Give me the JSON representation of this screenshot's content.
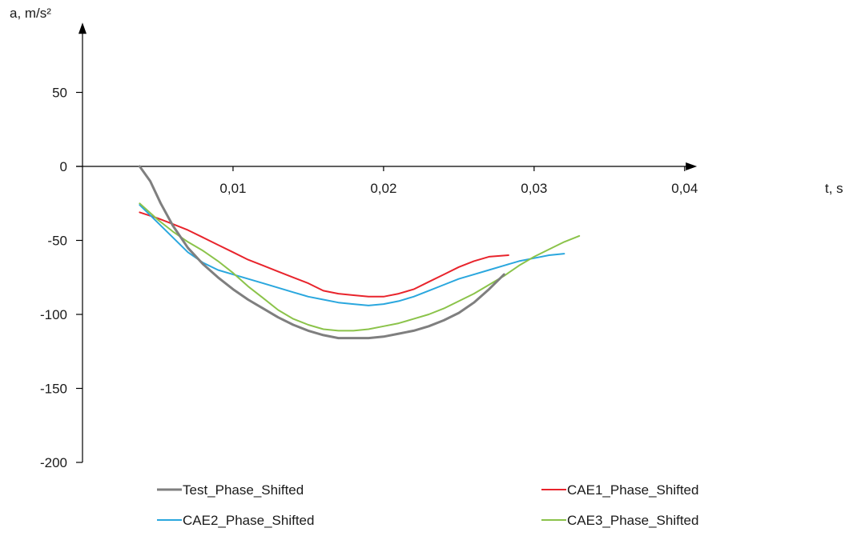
{
  "chart_data": {
    "type": "line",
    "title": "",
    "xlabel": "t, s",
    "ylabel": "a, m/s²",
    "xlim": [
      0,
      0.0405
    ],
    "ylim": [
      -200,
      95
    ],
    "x_ticks": [
      0.01,
      0.02,
      0.03,
      0.04
    ],
    "x_tick_labels": [
      "0,01",
      "0,02",
      "0,03",
      "0,04"
    ],
    "y_ticks": [
      50,
      0,
      -50,
      -100,
      -150,
      -200
    ],
    "y_tick_labels": [
      "50",
      "0",
      "-50",
      "-100",
      "-150",
      "-200"
    ],
    "grid": false,
    "legend_position": "bottom",
    "series": [
      {
        "name": "Test_Phase_Shifted",
        "color": "#7f7f7f",
        "width": 3,
        "x": [
          0.0038,
          0.0045,
          0.0052,
          0.006,
          0.007,
          0.008,
          0.009,
          0.01,
          0.011,
          0.012,
          0.013,
          0.014,
          0.015,
          0.016,
          0.017,
          0.018,
          0.019,
          0.02,
          0.021,
          0.022,
          0.023,
          0.024,
          0.025,
          0.026,
          0.027,
          0.028
        ],
        "y": [
          0,
          -10,
          -25,
          -40,
          -55,
          -66,
          -75,
          -83,
          -90,
          -96,
          -102,
          -107,
          -111,
          -114,
          -116,
          -116,
          -116,
          -115,
          -113,
          -111,
          -108,
          -104,
          -99,
          -92,
          -83,
          -73
        ]
      },
      {
        "name": "CAE1_Phase_Shifted",
        "color": "#e8242c",
        "width": 2,
        "x": [
          0.0038,
          0.005,
          0.006,
          0.007,
          0.008,
          0.009,
          0.01,
          0.011,
          0.012,
          0.013,
          0.014,
          0.015,
          0.016,
          0.017,
          0.018,
          0.019,
          0.02,
          0.021,
          0.022,
          0.023,
          0.024,
          0.025,
          0.026,
          0.027,
          0.0283
        ],
        "y": [
          -31,
          -35,
          -39,
          -43,
          -48,
          -53,
          -58,
          -63,
          -67,
          -71,
          -75,
          -79,
          -84,
          -86,
          -87,
          -88,
          -88,
          -86,
          -83,
          -78,
          -73,
          -68,
          -64,
          -61,
          -60
        ]
      },
      {
        "name": "CAE2_Phase_Shifted",
        "color": "#2aa7de",
        "width": 2,
        "x": [
          0.0038,
          0.005,
          0.006,
          0.007,
          0.008,
          0.009,
          0.01,
          0.011,
          0.012,
          0.013,
          0.014,
          0.015,
          0.016,
          0.017,
          0.018,
          0.019,
          0.02,
          0.021,
          0.022,
          0.023,
          0.024,
          0.025,
          0.026,
          0.027,
          0.028,
          0.029,
          0.03,
          0.031,
          0.032
        ],
        "y": [
          -26,
          -38,
          -48,
          -58,
          -65,
          -70,
          -73,
          -76,
          -79,
          -82,
          -85,
          -88,
          -90,
          -92,
          -93,
          -94,
          -93,
          -91,
          -88,
          -84,
          -80,
          -76,
          -73,
          -70,
          -67,
          -64,
          -62,
          -60,
          -59
        ]
      },
      {
        "name": "CAE3_Phase_Shifted",
        "color": "#8bc34a",
        "width": 2,
        "x": [
          0.0038,
          0.005,
          0.006,
          0.007,
          0.008,
          0.009,
          0.01,
          0.011,
          0.012,
          0.013,
          0.014,
          0.015,
          0.016,
          0.017,
          0.018,
          0.019,
          0.02,
          0.021,
          0.022,
          0.023,
          0.024,
          0.025,
          0.026,
          0.027,
          0.028,
          0.029,
          0.03,
          0.031,
          0.032,
          0.033
        ],
        "y": [
          -25,
          -36,
          -44,
          -51,
          -57,
          -64,
          -72,
          -81,
          -89,
          -97,
          -103,
          -107,
          -110,
          -111,
          -111,
          -110,
          -108,
          -106,
          -103,
          -100,
          -96,
          -91,
          -86,
          -80,
          -74,
          -67,
          -61,
          -56,
          -51,
          -47
        ]
      }
    ]
  }
}
